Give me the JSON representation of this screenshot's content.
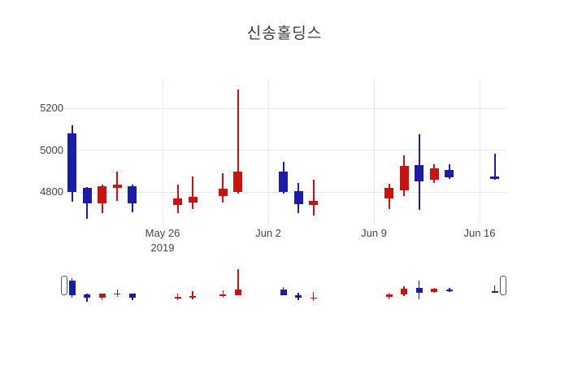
{
  "title": "신송홀딩스",
  "colors": {
    "increasing": "#CC1111",
    "decreasing": "#1C1CA8",
    "grid": "#E8E8E8",
    "text": "#444444",
    "handle_border": "#555555"
  },
  "y_axis": {
    "ticks": [
      {
        "label": "5200",
        "value": 5200
      },
      {
        "label": "5000",
        "value": 5000
      },
      {
        "label": "4800",
        "value": 4800
      }
    ]
  },
  "x_axis": {
    "ticks": [
      {
        "label": "May 26",
        "sublabel": "2019",
        "day": 0
      },
      {
        "label": "Jun 2",
        "sublabel": "",
        "day": 7
      },
      {
        "label": "Jun 9",
        "sublabel": "",
        "day": 14
      },
      {
        "label": "Jun 16",
        "sublabel": "",
        "day": 21
      }
    ]
  },
  "rangeslider": {
    "present": true,
    "handle_count": 2
  },
  "chart_data": {
    "type": "candlestick",
    "title": "신송홀딩스",
    "xlabel": "",
    "ylabel": "",
    "x_tick_labels": [
      "May 26 2019",
      "Jun 2",
      "Jun 9",
      "Jun 16"
    ],
    "y_tick_labels": [
      4800,
      5000,
      5200
    ],
    "visible_y_range": [
      4650,
      5340
    ],
    "grid": true,
    "legend": false,
    "increasing_color": "#CC1111",
    "decreasing_color": "#1C1CA8",
    "points": [
      {
        "date": "2019-05-20",
        "day": -6,
        "open": 5080,
        "high": 5120,
        "low": 4755,
        "close": 4800
      },
      {
        "date": "2019-05-21",
        "day": -5,
        "open": 4820,
        "high": 4825,
        "low": 4675,
        "close": 4745
      },
      {
        "date": "2019-05-22",
        "day": -4,
        "open": 4745,
        "high": 4835,
        "low": 4700,
        "close": 4830
      },
      {
        "date": "2019-05-23",
        "day": -3,
        "open": 4820,
        "high": 4900,
        "low": 4760,
        "close": 4835
      },
      {
        "date": "2019-05-24",
        "day": -2,
        "open": 4830,
        "high": 4835,
        "low": 4705,
        "close": 4745
      },
      {
        "date": "2019-05-27",
        "day": 1,
        "open": 4740,
        "high": 4835,
        "low": 4700,
        "close": 4770
      },
      {
        "date": "2019-05-28",
        "day": 2,
        "open": 4750,
        "high": 4875,
        "low": 4720,
        "close": 4780
      },
      {
        "date": "2019-05-30",
        "day": 4,
        "open": 4780,
        "high": 4890,
        "low": 4750,
        "close": 4815
      },
      {
        "date": "2019-05-31",
        "day": 5,
        "open": 4800,
        "high": 5290,
        "low": 4795,
        "close": 4900
      },
      {
        "date": "2019-06-03",
        "day": 8,
        "open": 4900,
        "high": 4945,
        "low": 4795,
        "close": 4800
      },
      {
        "date": "2019-06-04",
        "day": 9,
        "open": 4805,
        "high": 4845,
        "low": 4700,
        "close": 4745
      },
      {
        "date": "2019-06-05",
        "day": 10,
        "open": 4740,
        "high": 4860,
        "low": 4690,
        "close": 4760
      },
      {
        "date": "2019-06-10",
        "day": 15,
        "open": 4770,
        "high": 4840,
        "low": 4720,
        "close": 4820
      },
      {
        "date": "2019-06-11",
        "day": 16,
        "open": 4810,
        "high": 4975,
        "low": 4780,
        "close": 4925
      },
      {
        "date": "2019-06-12",
        "day": 17,
        "open": 4930,
        "high": 5075,
        "low": 4715,
        "close": 4850
      },
      {
        "date": "2019-06-13",
        "day": 18,
        "open": 4860,
        "high": 4935,
        "low": 4845,
        "close": 4915
      },
      {
        "date": "2019-06-14",
        "day": 19,
        "open": 4905,
        "high": 4935,
        "low": 4865,
        "close": 4870
      },
      {
        "date": "2019-06-17",
        "day": 22,
        "open": 4875,
        "high": 4985,
        "low": 4860,
        "close": 4865
      }
    ]
  }
}
